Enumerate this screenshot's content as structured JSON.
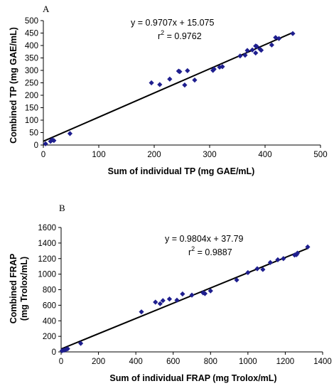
{
  "chart_data": [
    {
      "type": "scatter",
      "panel_label": "A",
      "xlabel": "Sum of individual TP (mg GAE/mL)",
      "ylabel": [
        "Combined TP (mg GAE/mL)"
      ],
      "xlim": [
        0,
        500
      ],
      "ylim": [
        0,
        500
      ],
      "xticks": [
        "0",
        "100",
        "200",
        "300",
        "400",
        "500"
      ],
      "yticks": [
        "0",
        "50",
        "100",
        "150",
        "200",
        "250",
        "300",
        "350",
        "400",
        "450",
        "500"
      ],
      "equation": "y = 0.9707x + 15.075",
      "r2_prefix": "r",
      "r2_sup": "2",
      "r2_value": " = 0.9762",
      "trendline": {
        "slope": 0.9707,
        "intercept": 15.075,
        "x_range": [
          0,
          450
        ]
      },
      "marker_color": "#1f1f8f",
      "line_color": "#000000",
      "points": [
        [
          4,
          5
        ],
        [
          13,
          15
        ],
        [
          16,
          21
        ],
        [
          19,
          18
        ],
        [
          48,
          46
        ],
        [
          195,
          250
        ],
        [
          210,
          243
        ],
        [
          228,
          265
        ],
        [
          244,
          297
        ],
        [
          246,
          295
        ],
        [
          255,
          241
        ],
        [
          260,
          299
        ],
        [
          273,
          261
        ],
        [
          306,
          300
        ],
        [
          308,
          305
        ],
        [
          318,
          313
        ],
        [
          323,
          315
        ],
        [
          355,
          358
        ],
        [
          364,
          361
        ],
        [
          368,
          380
        ],
        [
          377,
          382
        ],
        [
          383,
          370
        ],
        [
          383,
          398
        ],
        [
          385,
          396
        ],
        [
          391,
          385
        ],
        [
          393,
          381
        ],
        [
          412,
          402
        ],
        [
          419,
          432
        ],
        [
          425,
          428
        ],
        [
          450,
          448
        ]
      ]
    },
    {
      "type": "scatter",
      "panel_label": "B",
      "xlabel": "Sum of individual FRAP (mg Trolox/mL)",
      "ylabel": [
        "Combined FRAP",
        "(mg Trolox/mL)"
      ],
      "xlim": [
        0,
        1400
      ],
      "ylim": [
        0,
        1600
      ],
      "xticks": [
        "0",
        "200",
        "400",
        "600",
        "800",
        "1000",
        "1200",
        "1400"
      ],
      "yticks": [
        "0",
        "200",
        "400",
        "600",
        "800",
        "1000",
        "1200",
        "1400",
        "1600"
      ],
      "equation": "y = 0.9804x + 37.79",
      "r2_prefix": "r",
      "r2_sup": "2",
      "r2_value": " = 0.9887",
      "trendline": {
        "slope": 0.9804,
        "intercept": 37.79,
        "x_range": [
          0,
          1320
        ]
      },
      "marker_color": "#1f1f8f",
      "line_color": "#000000",
      "points": [
        [
          5,
          15
        ],
        [
          15,
          22
        ],
        [
          25,
          30
        ],
        [
          35,
          40
        ],
        [
          105,
          110
        ],
        [
          430,
          515
        ],
        [
          505,
          640
        ],
        [
          530,
          620
        ],
        [
          545,
          660
        ],
        [
          580,
          680
        ],
        [
          620,
          665
        ],
        [
          650,
          745
        ],
        [
          700,
          730
        ],
        [
          760,
          760
        ],
        [
          770,
          750
        ],
        [
          800,
          785
        ],
        [
          940,
          925
        ],
        [
          1000,
          1020
        ],
        [
          1050,
          1070
        ],
        [
          1080,
          1060
        ],
        [
          1120,
          1150
        ],
        [
          1160,
          1185
        ],
        [
          1190,
          1200
        ],
        [
          1250,
          1245
        ],
        [
          1260,
          1250
        ],
        [
          1265,
          1270
        ],
        [
          1320,
          1350
        ]
      ]
    }
  ]
}
